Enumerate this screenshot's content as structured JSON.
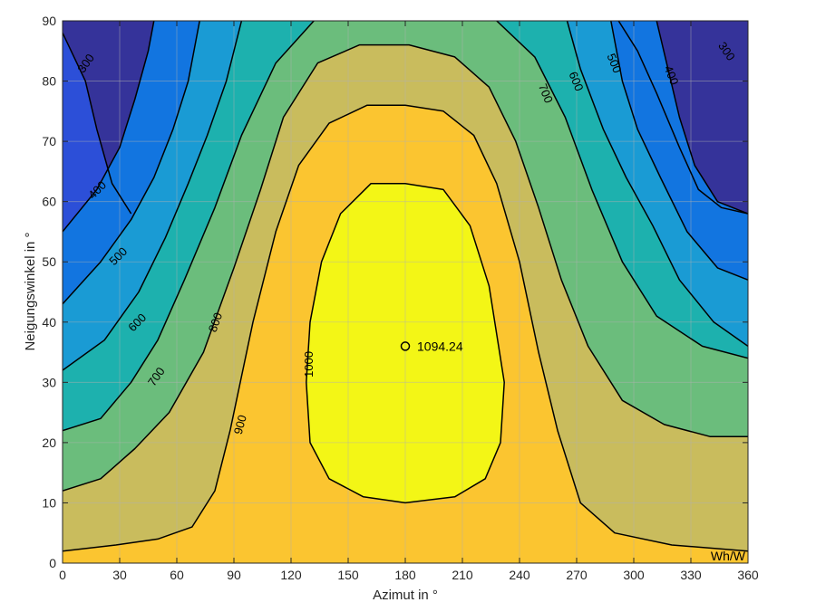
{
  "chart_data": {
    "type": "contour",
    "xlabel": "Azimut in °",
    "ylabel": "Neigungswinkel in °",
    "xlim": [
      0,
      360
    ],
    "ylim": [
      0,
      90
    ],
    "xticks": [
      0,
      30,
      60,
      90,
      120,
      150,
      180,
      210,
      240,
      270,
      300,
      330,
      360
    ],
    "yticks": [
      0,
      10,
      20,
      30,
      40,
      50,
      60,
      70,
      80,
      90
    ],
    "grid": true,
    "unit_label": "Wh/W",
    "levels": [
      300,
      400,
      500,
      600,
      700,
      800,
      900,
      1000
    ],
    "colors": {
      "below_300": "#35339a",
      "300": "#2c4fd8",
      "400": "#1275e0",
      "500": "#1a9bd4",
      "600": "#1db1ae",
      "700": "#6bbd7c",
      "800": "#c9bc5d",
      "900": "#fbc530",
      "1000": "#f3f616",
      "line": "#000000",
      "grid": "#b0b0b0"
    },
    "contours": [
      {
        "level": 300,
        "segments": [
          [
            [
              0,
              88
            ],
            [
              12,
              80
            ],
            [
              18,
              72
            ],
            [
              26,
              63
            ],
            [
              36,
              58
            ]
          ],
          [
            [
              292,
              90
            ],
            [
              302,
              85
            ],
            [
              312,
              78
            ],
            [
              324,
              69
            ],
            [
              334,
              62
            ],
            [
              346,
              59
            ],
            [
              360,
              58
            ]
          ]
        ]
      },
      {
        "level": 400,
        "segments": [
          [
            [
              0,
              55
            ],
            [
              18,
              62
            ],
            [
              30,
              69
            ],
            [
              38,
              77
            ],
            [
              45,
              85
            ],
            [
              48,
              90
            ]
          ],
          [
            [
              312,
              90
            ],
            [
              318,
              82
            ],
            [
              324,
              74
            ],
            [
              332,
              66
            ],
            [
              344,
              60
            ],
            [
              360,
              58
            ]
          ]
        ]
      },
      {
        "level": 500,
        "segments": [
          [
            [
              0,
              43
            ],
            [
              20,
              50
            ],
            [
              36,
              57
            ],
            [
              48,
              64
            ],
            [
              58,
              72
            ],
            [
              66,
              80
            ],
            [
              72,
              90
            ]
          ],
          [
            [
              288,
              90
            ],
            [
              294,
              80
            ],
            [
              302,
              72
            ],
            [
              314,
              64
            ],
            [
              328,
              55
            ],
            [
              344,
              49
            ],
            [
              360,
              47
            ]
          ]
        ]
      },
      {
        "level": 600,
        "segments": [
          [
            [
              0,
              32
            ],
            [
              22,
              37
            ],
            [
              40,
              45
            ],
            [
              54,
              54
            ],
            [
              66,
              63
            ],
            [
              76,
              71
            ],
            [
              86,
              80
            ],
            [
              94,
              90
            ]
          ],
          [
            [
              265,
              90
            ],
            [
              272,
              82
            ],
            [
              284,
              72
            ],
            [
              296,
              64
            ],
            [
              310,
              56
            ],
            [
              324,
              47
            ],
            [
              342,
              40
            ],
            [
              360,
              36
            ]
          ]
        ]
      },
      {
        "level": 700,
        "segments": [
          [
            [
              0,
              22
            ],
            [
              20,
              24
            ],
            [
              36,
              30
            ],
            [
              50,
              37
            ],
            [
              64,
              47
            ],
            [
              80,
              59
            ],
            [
              94,
              71
            ],
            [
              112,
              83
            ],
            [
              132,
              90
            ]
          ],
          [
            [
              228,
              90
            ],
            [
              248,
              84
            ],
            [
              264,
              74
            ],
            [
              278,
              62
            ],
            [
              294,
              50
            ],
            [
              312,
              41
            ],
            [
              336,
              36
            ],
            [
              360,
              34
            ]
          ]
        ]
      },
      {
        "level": 800,
        "segments": [
          [
            [
              0,
              12
            ],
            [
              20,
              14
            ],
            [
              38,
              19
            ],
            [
              56,
              25
            ],
            [
              74,
              35
            ],
            [
              90,
              49
            ],
            [
              104,
              62
            ],
            [
              116,
              74
            ],
            [
              134,
              83
            ],
            [
              156,
              86
            ],
            [
              182,
              86
            ],
            [
              206,
              84
            ],
            [
              224,
              79
            ],
            [
              238,
              70
            ],
            [
              250,
              59
            ],
            [
              262,
              47
            ],
            [
              276,
              36
            ],
            [
              294,
              27
            ],
            [
              316,
              23
            ],
            [
              340,
              21
            ],
            [
              360,
              21
            ]
          ]
        ]
      },
      {
        "level": 900,
        "segments": [
          [
            [
              0,
              2
            ],
            [
              28,
              3
            ],
            [
              50,
              4
            ],
            [
              68,
              6
            ],
            [
              80,
              12
            ],
            [
              88,
              22
            ],
            [
              100,
              40
            ],
            [
              112,
              55
            ],
            [
              124,
              66
            ],
            [
              140,
              73
            ],
            [
              160,
              76
            ],
            [
              180,
              76
            ],
            [
              200,
              75
            ],
            [
              216,
              71
            ],
            [
              228,
              63
            ],
            [
              240,
              50
            ],
            [
              250,
              35
            ],
            [
              260,
              22
            ],
            [
              272,
              10
            ],
            [
              290,
              5
            ],
            [
              320,
              3
            ],
            [
              360,
              2
            ]
          ]
        ]
      },
      {
        "level": 1000,
        "closed": true,
        "segments": [
          [
            [
              180,
              63
            ],
            [
              200,
              62
            ],
            [
              214,
              56
            ],
            [
              224,
              46
            ],
            [
              232,
              30
            ],
            [
              230,
              20
            ],
            [
              222,
              14
            ],
            [
              206,
              11
            ],
            [
              180,
              10
            ],
            [
              158,
              11
            ],
            [
              140,
              14
            ],
            [
              130,
              20
            ],
            [
              128,
              30
            ],
            [
              130,
              40
            ],
            [
              136,
              50
            ],
            [
              146,
              58
            ],
            [
              162,
              63
            ],
            [
              180,
              63
            ]
          ]
        ]
      }
    ],
    "contour_labels": [
      {
        "text": "300",
        "x": 12,
        "y": 83,
        "rot": -55
      },
      {
        "text": "300",
        "x": 349,
        "y": 85,
        "rot": 55
      },
      {
        "text": "400",
        "x": 18,
        "y": 62,
        "rot": -45
      },
      {
        "text": "400",
        "x": 320,
        "y": 81,
        "rot": 68
      },
      {
        "text": "500",
        "x": 29,
        "y": 51,
        "rot": -45
      },
      {
        "text": "500",
        "x": 290,
        "y": 83,
        "rot": 68
      },
      {
        "text": "600",
        "x": 39,
        "y": 40,
        "rot": -45
      },
      {
        "text": "600",
        "x": 270,
        "y": 80,
        "rot": 68
      },
      {
        "text": "700",
        "x": 49,
        "y": 31,
        "rot": -55
      },
      {
        "text": "700",
        "x": 254,
        "y": 78,
        "rot": 68
      },
      {
        "text": "800",
        "x": 80,
        "y": 40,
        "rot": -70
      },
      {
        "text": "900",
        "x": 93,
        "y": 23,
        "rot": -75
      },
      {
        "text": "1000",
        "x": 129,
        "y": 33,
        "rot": -90
      }
    ],
    "max_point": {
      "x": 180,
      "y": 36,
      "label": "1094.24"
    }
  }
}
